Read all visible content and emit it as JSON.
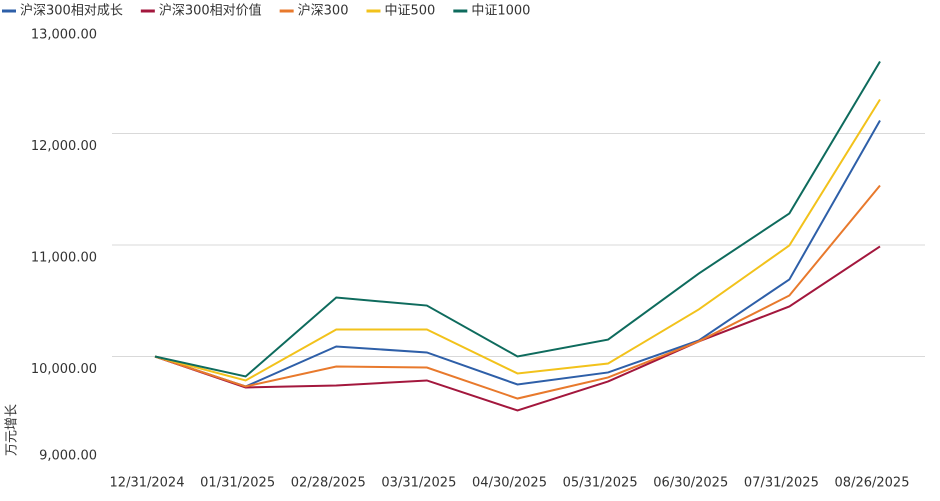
{
  "chart_data": {
    "type": "line",
    "y_label": "万元增长",
    "categories": [
      "12/31/2024",
      "01/31/2025",
      "02/28/2025",
      "03/31/2025",
      "04/30/2025",
      "05/31/2025",
      "06/30/2025",
      "07/31/2025",
      "08/26/2025"
    ],
    "series": [
      {
        "name": "沪深300相对成长",
        "color": "#2e5fa8",
        "values": [
          10000,
          9731,
          10090,
          10036,
          9749,
          9857,
          10144,
          10691,
          12117
        ]
      },
      {
        "name": "沪深300相对价值",
        "color": "#a3173d",
        "values": [
          10000,
          9722,
          9740,
          9785,
          9516,
          9776,
          10135,
          10449,
          10987
        ]
      },
      {
        "name": "沪深300",
        "color": "#e8792c",
        "values": [
          10000,
          9731,
          9910,
          9901,
          9623,
          9812,
          10135,
          10547,
          11534
        ]
      },
      {
        "name": "中证500",
        "color": "#f2c21b",
        "values": [
          10000,
          9785,
          10242,
          10242,
          9848,
          9937,
          10422,
          10996,
          12305
        ]
      },
      {
        "name": "中证1000",
        "color": "#0e6b5d",
        "values": [
          10000,
          9821,
          10529,
          10457,
          10000,
          10152,
          10744,
          11283,
          12646
        ]
      }
    ],
    "ylim": [
      9000,
      13000
    ],
    "yticks": [
      {
        "value": 9000,
        "label": "9,000.00"
      },
      {
        "value": 10000,
        "label": "10,000.00"
      },
      {
        "value": 11000,
        "label": "11,000.00"
      },
      {
        "value": 12000,
        "label": "12,000.00"
      },
      {
        "value": 13000,
        "label": "13,000.00"
      }
    ],
    "grid": true,
    "legend": "top"
  }
}
